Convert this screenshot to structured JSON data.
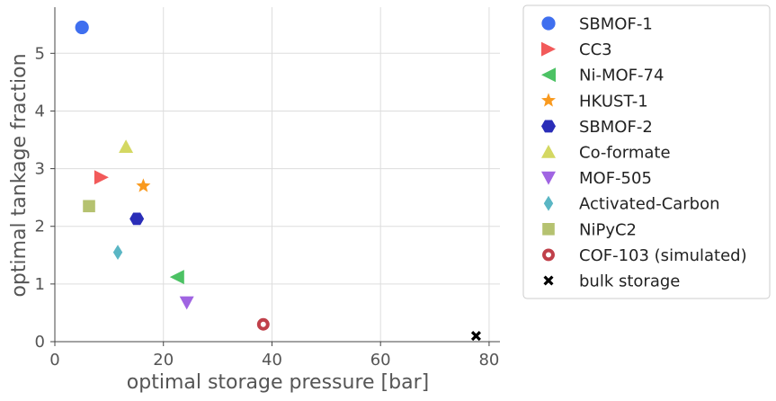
{
  "chart_data": {
    "type": "scatter",
    "title": "",
    "xlabel": "optimal storage pressure [bar]",
    "ylabel": "optimal tankage fraction",
    "xlim": [
      0,
      82
    ],
    "ylim": [
      0,
      5.8
    ],
    "x_ticks": [
      0,
      20,
      40,
      60,
      80
    ],
    "y_ticks": [
      0,
      1,
      2,
      3,
      4,
      5
    ],
    "grid": true,
    "legend_position": "outside-right",
    "series": [
      {
        "name": "SBMOF-1",
        "marker": "circle",
        "color": "#3f6fef",
        "x": [
          5.0
        ],
        "y": [
          5.45
        ]
      },
      {
        "name": "CC3",
        "marker": "triangle-right",
        "color": "#f25a5a",
        "x": [
          8.6
        ],
        "y": [
          2.85
        ]
      },
      {
        "name": "Ni-MOF-74",
        "marker": "triangle-left",
        "color": "#4cc264",
        "x": [
          22.5
        ],
        "y": [
          1.12
        ]
      },
      {
        "name": "HKUST-1",
        "marker": "star",
        "color": "#f99a1f",
        "x": [
          16.3
        ],
        "y": [
          2.7
        ]
      },
      {
        "name": "SBMOF-2",
        "marker": "hexagon",
        "color": "#2a2db8",
        "x": [
          15.1
        ],
        "y": [
          2.13
        ]
      },
      {
        "name": "Co-formate",
        "marker": "triangle-up",
        "color": "#d4d862",
        "x": [
          13.1
        ],
        "y": [
          3.38
        ]
      },
      {
        "name": "MOF-505",
        "marker": "triangle-down",
        "color": "#a064e2",
        "x": [
          24.3
        ],
        "y": [
          0.68
        ]
      },
      {
        "name": "Activated-Carbon",
        "marker": "thin-diamond",
        "color": "#5ab6c4",
        "x": [
          11.6
        ],
        "y": [
          1.55
        ]
      },
      {
        "name": "NiPyC2",
        "marker": "square",
        "color": "#b5c270",
        "x": [
          6.3
        ],
        "y": [
          2.35
        ]
      },
      {
        "name": "COF-103 (simulated)",
        "marker": "ring",
        "color": "#c0404a",
        "x": [
          38.4
        ],
        "y": [
          0.3
        ]
      },
      {
        "name": "bulk storage",
        "marker": "x",
        "color": "#000000",
        "x": [
          77.6
        ],
        "y": [
          0.1
        ]
      }
    ]
  }
}
